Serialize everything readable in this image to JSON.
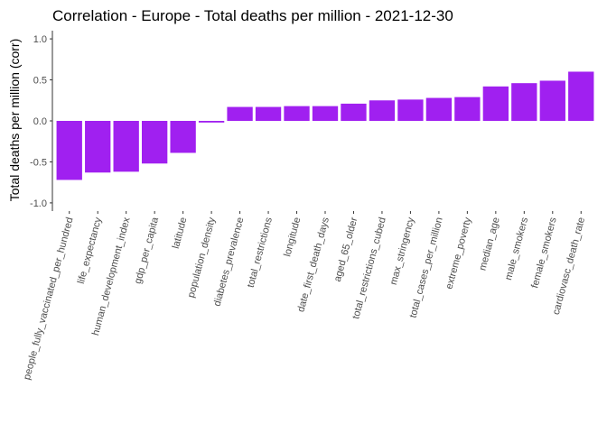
{
  "chart_data": {
    "type": "bar",
    "title": "Correlation - Europe - Total deaths per million - 2021-12-30",
    "xlabel": "",
    "ylabel": "Total deaths per million (corr)",
    "ylim": [
      -1.1,
      1.1
    ],
    "yticks": [
      -1.0,
      -0.5,
      0.0,
      0.5,
      1.0
    ],
    "ytick_labels": [
      "-1.0",
      "-0.5",
      "0.0",
      "0.5",
      "1.0"
    ],
    "grid": false,
    "bar_color": "#a020f0",
    "categories": [
      "people_fully_vaccinated_per_hundred",
      "life_expectancy",
      "human_development_index",
      "gdp_per_capita",
      "latitude",
      "population_density",
      "diabetes_prevalence",
      "total_restrictions",
      "longitude",
      "date_first_death_days",
      "aged_65_older",
      "total_restrictions_cubed",
      "max_stringency",
      "total_cases_per_million",
      "extreme_poverty",
      "median_age",
      "male_smokers",
      "female_smokers",
      "cardiovasc_death_rate"
    ],
    "values": [
      -0.72,
      -0.63,
      -0.62,
      -0.52,
      -0.39,
      -0.02,
      0.17,
      0.17,
      0.18,
      0.18,
      0.21,
      0.25,
      0.26,
      0.28,
      0.29,
      0.42,
      0.46,
      0.49,
      0.6
    ]
  }
}
